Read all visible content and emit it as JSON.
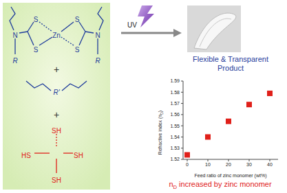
{
  "scheme": {
    "zinc_monomer": {
      "atoms": [
        "S",
        "S",
        "Zn",
        "S",
        "S",
        "N",
        "N",
        "R",
        "R"
      ]
    },
    "plus": "+",
    "diene": {
      "label": "R'"
    },
    "thiol": {
      "groups": [
        "HS",
        "SH",
        "SH",
        "SH"
      ]
    },
    "arrow_label": "UV"
  },
  "product": {
    "caption": [
      "Flexible & Transparent",
      "Product"
    ]
  },
  "chart_data": {
    "type": "scatter",
    "x": [
      0,
      10,
      20,
      30,
      40
    ],
    "values": [
      1.524,
      1.54,
      1.554,
      1.569,
      1.579
    ],
    "color": "#e0201a",
    "marker": "square",
    "xlabel": "Feed ratio of zinc monomer (wt%)",
    "ylabel": "Refractive index (nD)",
    "xlim": [
      -2,
      44
    ],
    "ylim": [
      1.52,
      1.59
    ],
    "xticks": [
      0,
      10,
      20,
      30,
      40
    ],
    "yticks": [
      1.52,
      1.53,
      1.54,
      1.55,
      1.56,
      1.57,
      1.58,
      1.59
    ]
  },
  "caption": "nD increased by zinc monomer"
}
